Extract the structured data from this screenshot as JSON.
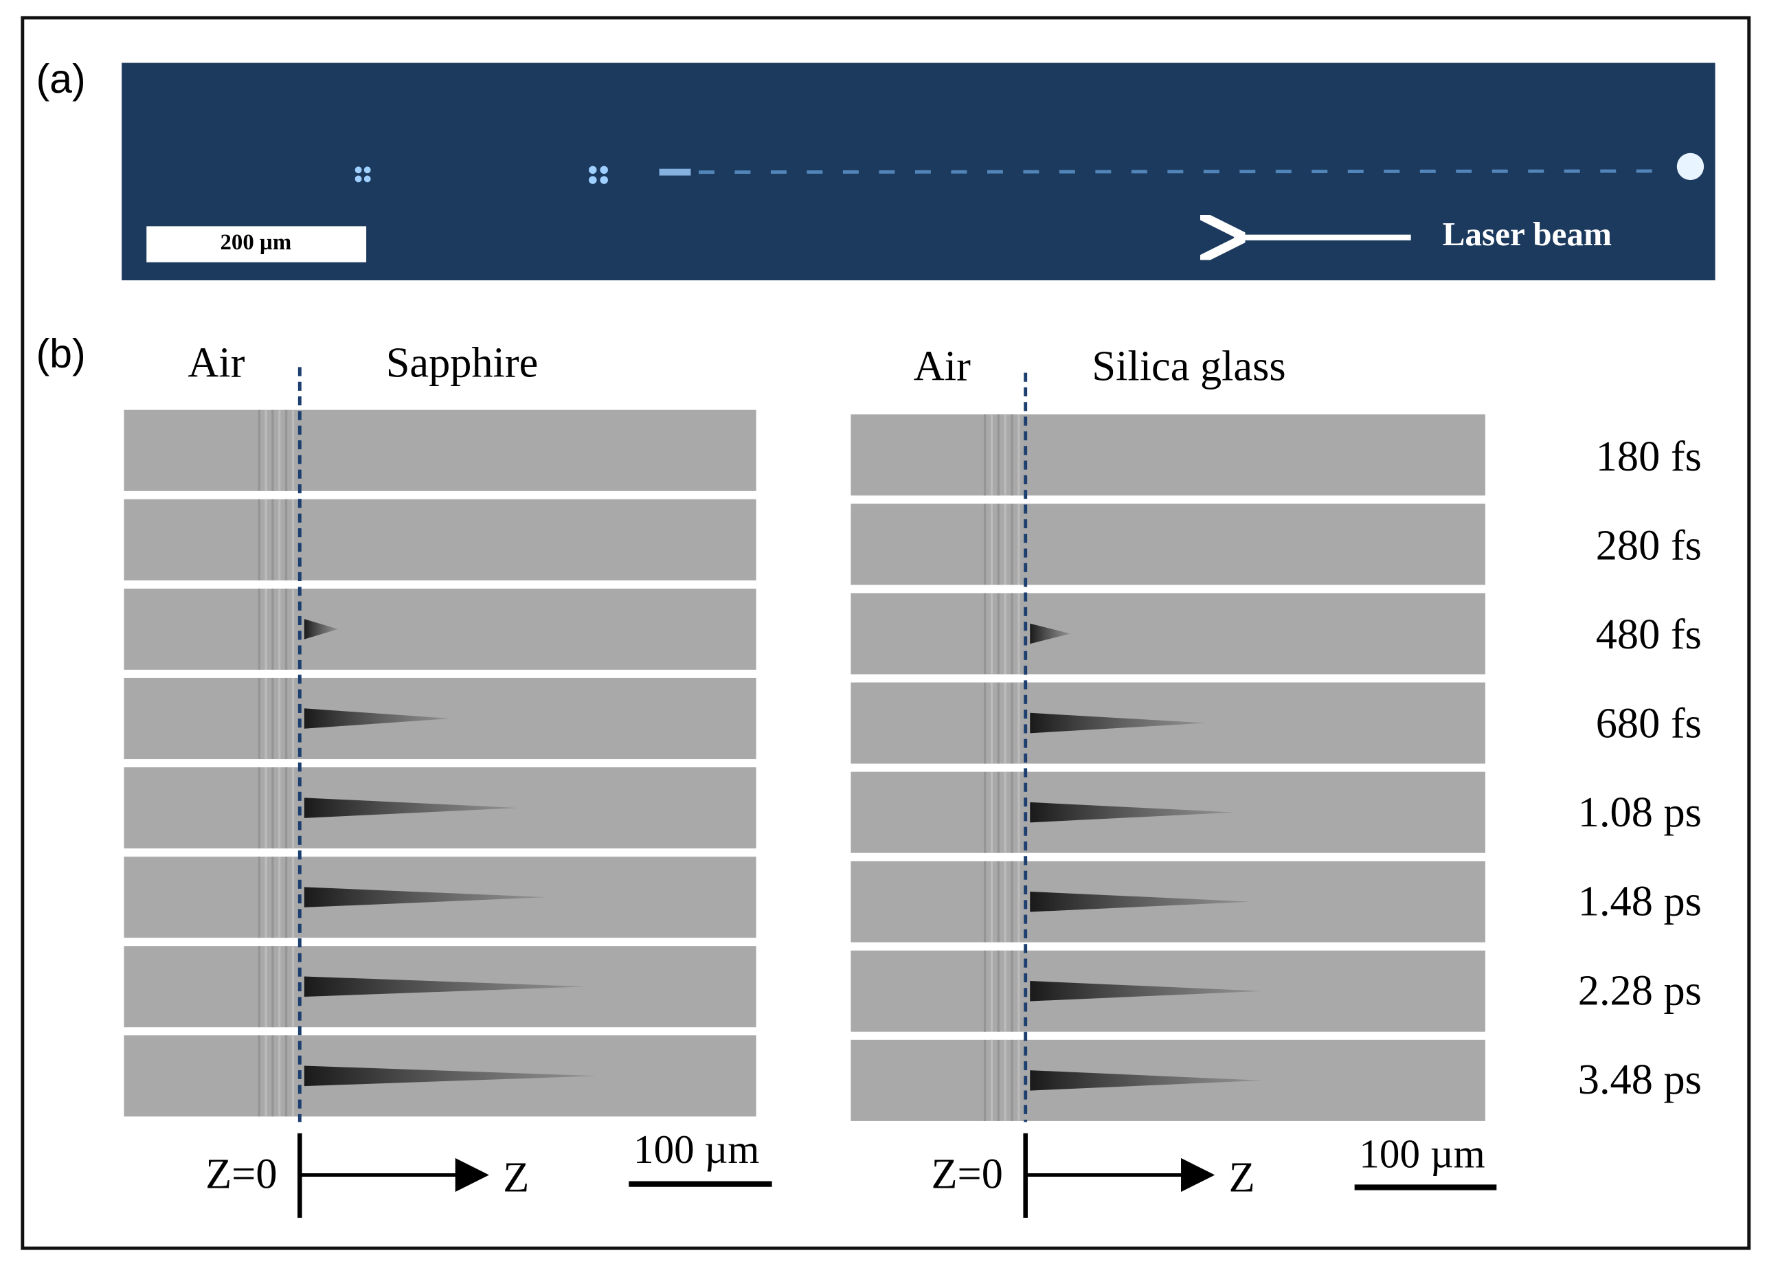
{
  "panel_a": {
    "label": "(a)",
    "scale_bar": "200 µm",
    "annotation": "Laser beam"
  },
  "panel_b": {
    "label": "(b)",
    "left": {
      "medium_left": "Air",
      "medium_right": "Sapphire",
      "origin": "Z=0",
      "axis": "Z",
      "scale_bar": "100 µm"
    },
    "right": {
      "medium_left": "Air",
      "medium_right": "Silica glass",
      "origin": "Z=0",
      "axis": "Z",
      "scale_bar": "100 µm"
    },
    "delays": [
      "180 fs",
      "280 fs",
      "480 fs",
      "680 fs",
      "1.08 ps",
      "1.48 ps",
      "2.28 ps",
      "3.48 ps"
    ]
  }
}
